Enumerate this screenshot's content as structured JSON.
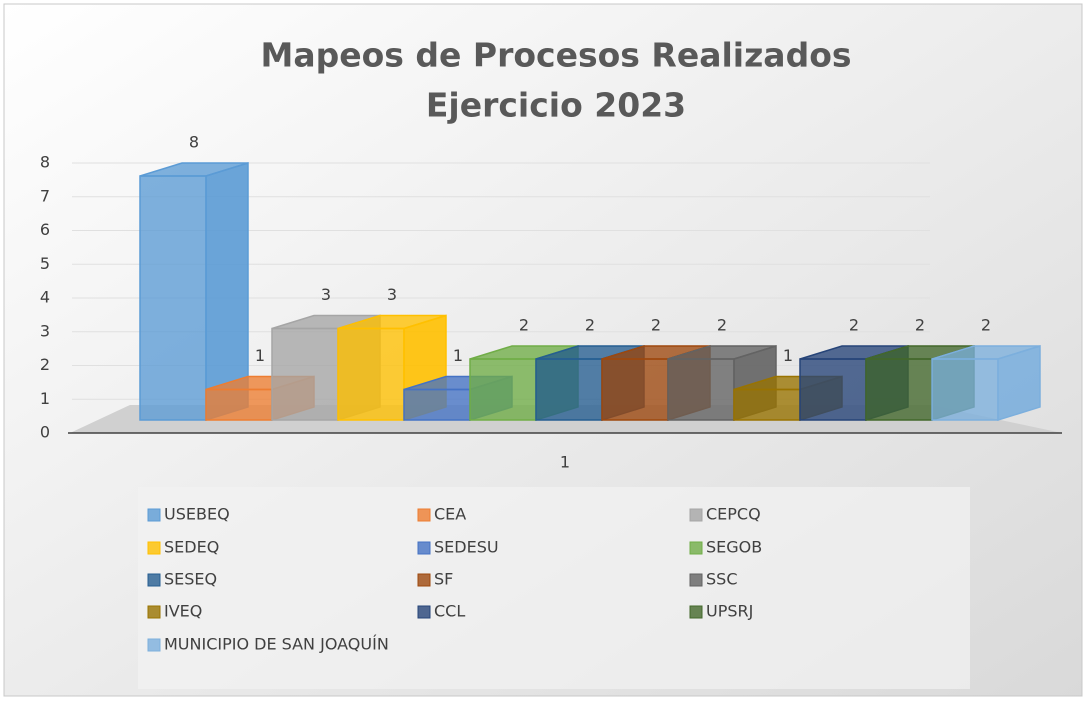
{
  "chart_data": {
    "type": "bar3d",
    "title": "Mapeos de Procesos Realizados",
    "subtitle": "Ejercicio 2023",
    "categories": [
      "1"
    ],
    "ylim": [
      0,
      8
    ],
    "yticks": [
      0,
      1,
      2,
      3,
      4,
      5,
      6,
      7,
      8
    ],
    "grid": true,
    "legend": "bottom",
    "series": [
      {
        "name": "USEBEQ",
        "color": "#5b9bd5",
        "values": [
          8
        ]
      },
      {
        "name": "CEA",
        "color": "#ed7d31",
        "values": [
          1
        ]
      },
      {
        "name": "CEPCQ",
        "color": "#a5a5a5",
        "values": [
          3
        ]
      },
      {
        "name": "SEDEQ",
        "color": "#ffc000",
        "values": [
          3
        ]
      },
      {
        "name": "SEDESU",
        "color": "#4472c4",
        "values": [
          1
        ]
      },
      {
        "name": "SEGOB",
        "color": "#70ad47",
        "values": [
          2
        ]
      },
      {
        "name": "SESEQ",
        "color": "#255e91",
        "values": [
          2
        ]
      },
      {
        "name": "SF",
        "color": "#9e480e",
        "values": [
          2
        ]
      },
      {
        "name": "SSC",
        "color": "#636363",
        "values": [
          2
        ]
      },
      {
        "name": "IVEQ",
        "color": "#997300",
        "values": [
          1
        ]
      },
      {
        "name": "CCL",
        "color": "#264478",
        "values": [
          2
        ]
      },
      {
        "name": "UPSRJ",
        "color": "#43682b",
        "values": [
          2
        ]
      },
      {
        "name": "MUNICIPIO DE SAN JOAQUÍN",
        "color": "#7cafdd",
        "values": [
          2
        ]
      }
    ]
  }
}
